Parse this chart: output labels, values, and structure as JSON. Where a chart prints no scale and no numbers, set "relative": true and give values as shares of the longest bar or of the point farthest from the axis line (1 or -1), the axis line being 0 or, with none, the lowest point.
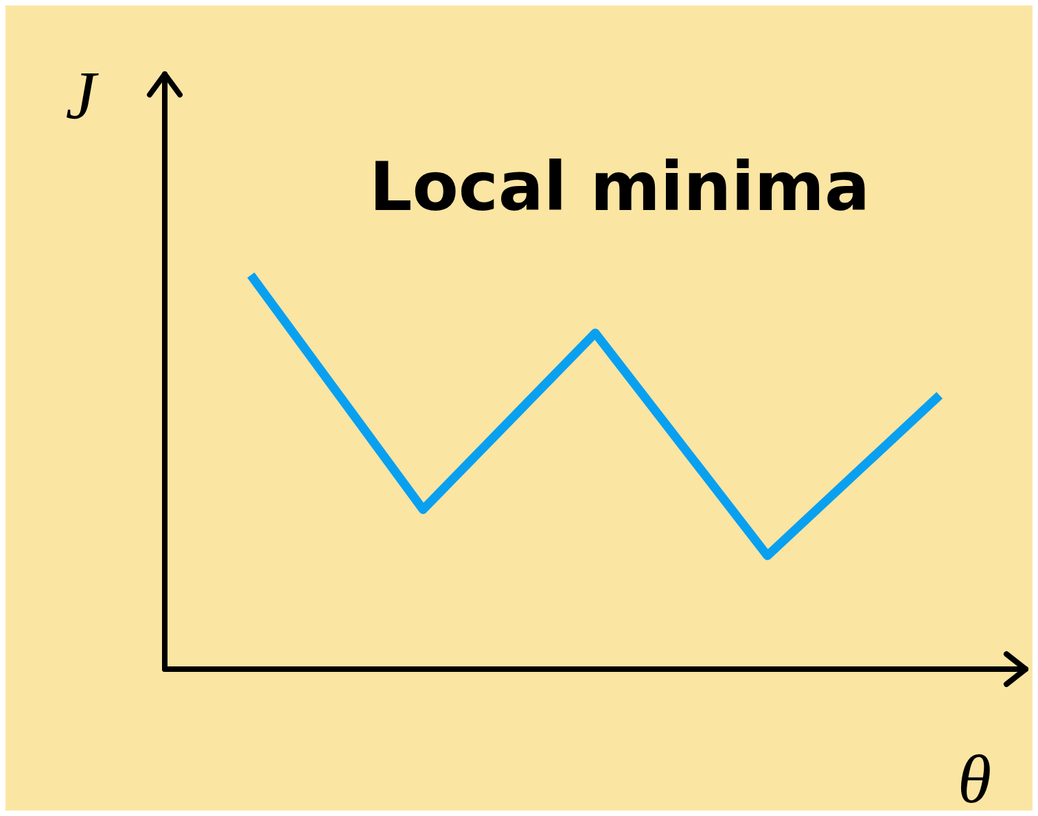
{
  "chart_data": {
    "type": "line",
    "title": "Local minima",
    "xlabel": "θ",
    "ylabel": "J",
    "relative": true,
    "categories": [
      null,
      null,
      null,
      null,
      null
    ],
    "series": [
      {
        "color": "#0aa0f0",
        "values": [
          1,
          0.405,
          0.853,
          0.288,
          0.695
        ]
      }
    ],
    "grid": false,
    "legend": false,
    "marker": "none",
    "line_style": "solid",
    "tick_labels": false
  }
}
